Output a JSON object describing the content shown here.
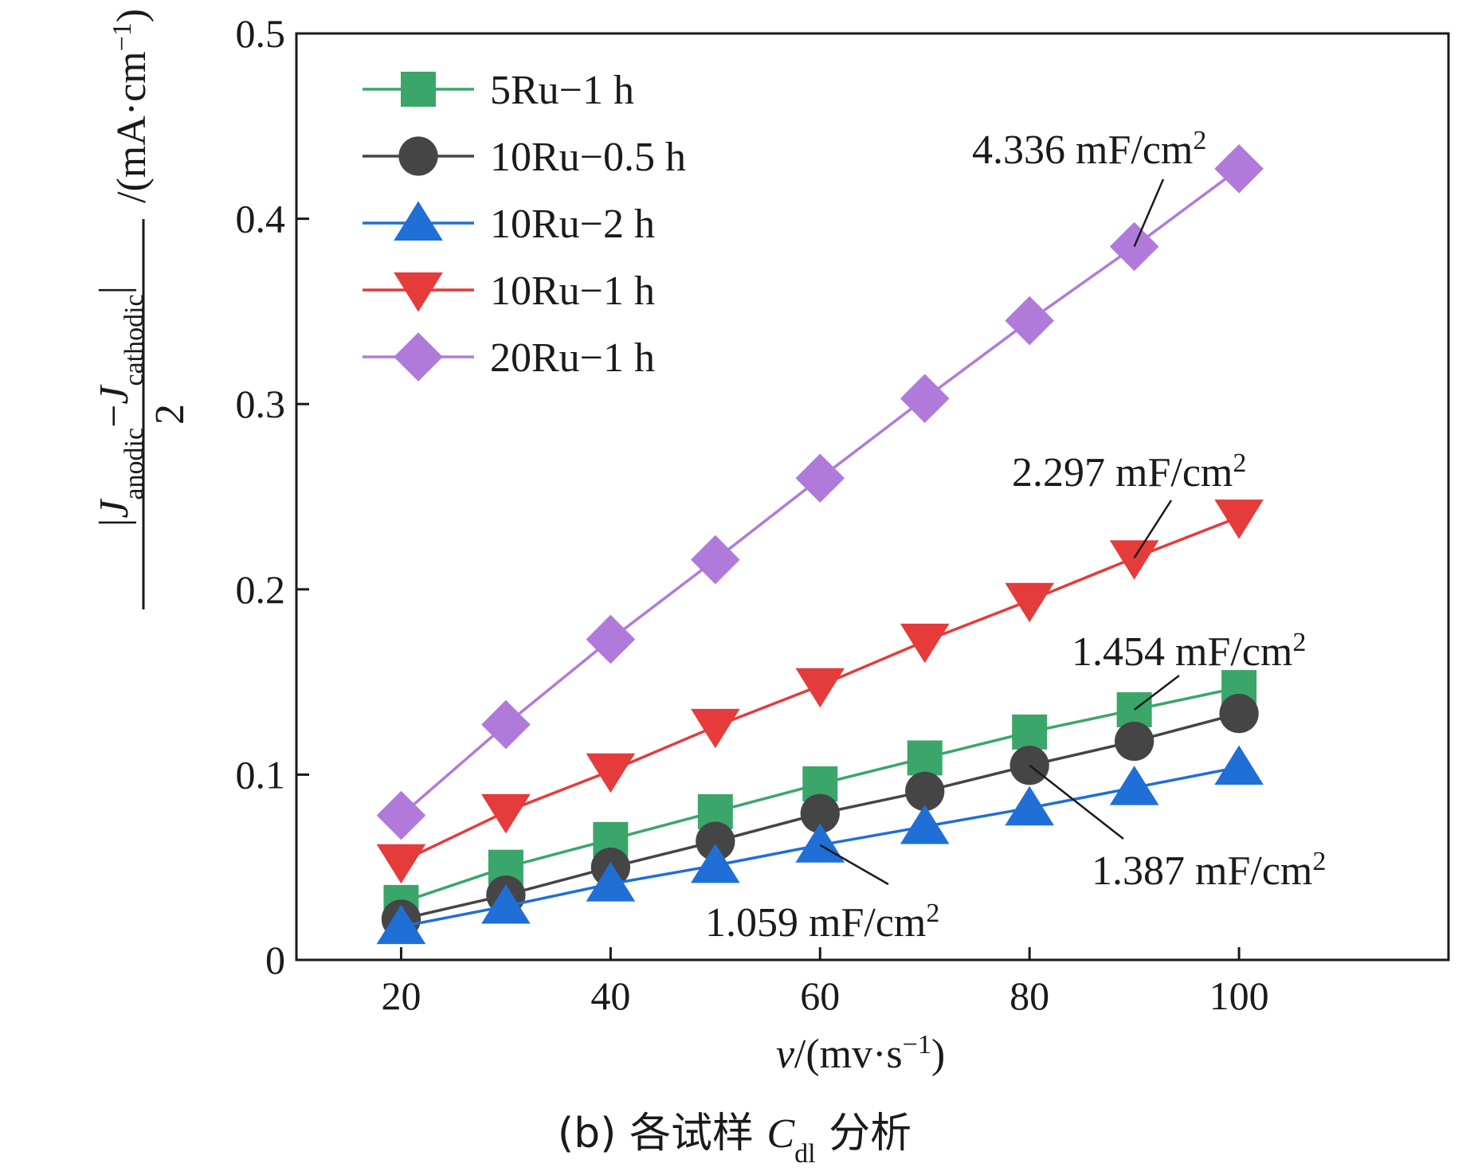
{
  "chart_data": {
    "type": "line",
    "xlabel": {
      "var": "v",
      "unit_prefix": "/(mv·s",
      "unit_sup": "−1",
      "unit_suffix": ")"
    },
    "ylabel": {
      "bar": "|",
      "j1": "J",
      "sub1": "anodic",
      "minus": "−",
      "j2": "J",
      "sub2": "cathodic",
      "bar2": "|",
      "den": "2",
      "unit_prefix": "/(mA·cm",
      "unit_sup": "−1",
      "unit_suffix": ")"
    },
    "xlim": [
      10,
      120
    ],
    "ylim": [
      0,
      0.5
    ],
    "x_ticks": [
      20,
      40,
      60,
      80,
      100
    ],
    "y_ticks": [
      0,
      0.1,
      0.2,
      0.3,
      0.4,
      0.5
    ],
    "x_tick_labels": [
      "20",
      "40",
      "60",
      "80",
      "100"
    ],
    "y_tick_labels": [
      "0",
      "0.1",
      "0.2",
      "0.3",
      "0.4",
      "0.5"
    ],
    "x": [
      20,
      30,
      40,
      50,
      60,
      70,
      80,
      90,
      100
    ],
    "legend_position": "top-left",
    "series": [
      {
        "name": "5Ru−1 h",
        "color": "#3aa66a",
        "marker": "square",
        "values": [
          0.031,
          0.05,
          0.065,
          0.08,
          0.095,
          0.109,
          0.123,
          0.135,
          0.147
        ]
      },
      {
        "name": "10Ru−0.5 h",
        "color": "#454545",
        "marker": "circle",
        "values": [
          0.022,
          0.035,
          0.05,
          0.064,
          0.079,
          0.091,
          0.105,
          0.118,
          0.133
        ]
      },
      {
        "name": "10Ru−2 h",
        "color": "#1f6fd6",
        "marker": "triangle-up",
        "values": [
          0.018,
          0.029,
          0.041,
          0.051,
          0.062,
          0.072,
          0.082,
          0.093,
          0.104
        ]
      },
      {
        "name": "10Ru−1 h",
        "color": "#e53b3b",
        "marker": "triangle-down",
        "values": [
          0.053,
          0.08,
          0.102,
          0.126,
          0.148,
          0.172,
          0.194,
          0.217,
          0.239
        ]
      },
      {
        "name": "20Ru−1 h",
        "color": "#b07ada",
        "marker": "diamond",
        "values": [
          0.078,
          0.127,
          0.173,
          0.216,
          0.26,
          0.303,
          0.345,
          0.385,
          0.427
        ]
      }
    ],
    "annotations": [
      {
        "text": "4.336 mF/cm",
        "sup": "2",
        "series": "20Ru−1 h",
        "point_x": 90
      },
      {
        "text": "2.297 mF/cm",
        "sup": "2",
        "series": "10Ru−1 h",
        "point_x": 90
      },
      {
        "text": "1.454 mF/cm",
        "sup": "2",
        "series": "5Ru−1 h",
        "point_x": 90
      },
      {
        "text": "1.387 mF/cm",
        "sup": "2",
        "series": "10Ru−0.5 h",
        "point_x": 80
      },
      {
        "text": "1.059 mF/cm",
        "sup": "2",
        "series": "10Ru−2 h",
        "point_x": 60
      }
    ]
  },
  "caption": {
    "prefix": "(b) 各试样 ",
    "var": "C",
    "sub": "dl",
    "suffix": " 分析"
  }
}
